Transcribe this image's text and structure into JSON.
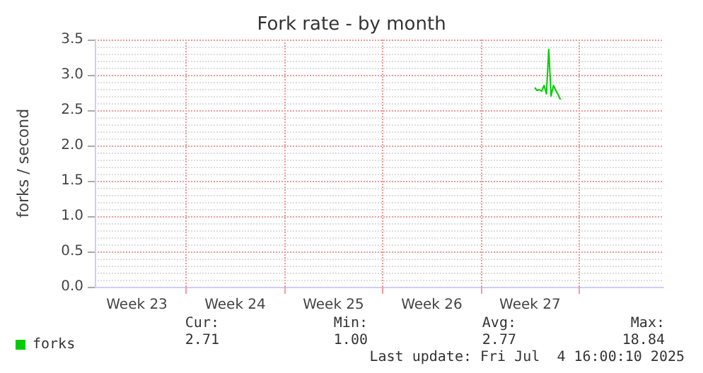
{
  "chart_data": {
    "type": "line",
    "title": "Fork rate - by month",
    "ylabel": "forks / second",
    "categories": [
      null,
      null,
      null,
      null,
      null,
      null,
      null,
      null,
      null,
      null,
      null,
      null,
      null,
      null,
      null,
      null,
      null,
      null,
      "Week 23",
      null,
      null,
      null,
      null,
      null,
      null,
      null,
      null,
      null,
      null,
      null,
      null,
      null,
      null,
      null,
      null,
      null,
      null,
      null,
      null,
      null,
      null,
      null,
      null,
      null,
      null,
      null,
      null,
      null,
      null,
      null,
      null,
      null,
      null,
      null,
      null,
      null,
      null,
      null,
      null,
      null,
      "Week 24",
      null,
      null,
      null,
      null,
      null,
      null,
      null,
      null,
      null,
      null,
      null,
      null,
      null,
      null,
      null,
      null,
      null,
      null,
      null,
      null,
      null,
      null,
      null,
      null,
      null,
      null,
      null,
      null,
      null,
      null,
      null,
      null,
      null,
      null,
      null,
      null,
      null,
      null,
      null,
      null,
      null,
      "Week 25",
      null,
      null,
      null,
      null,
      null,
      null,
      null,
      null,
      null,
      null,
      null,
      null,
      null,
      null,
      null,
      null,
      null,
      null,
      null,
      null,
      null,
      null,
      null,
      null,
      null,
      null,
      null,
      null,
      null,
      null,
      null,
      null,
      null,
      null,
      null,
      null,
      null,
      null,
      null,
      null,
      null,
      "Week 26",
      null,
      null,
      null,
      null,
      null,
      null,
      null,
      null,
      null,
      null,
      null,
      null,
      null,
      null,
      null,
      null,
      null,
      null,
      null,
      null,
      null,
      null,
      null,
      null,
      null,
      null,
      null,
      null,
      null,
      null,
      null,
      null,
      null,
      null,
      null,
      null,
      null,
      null,
      null,
      null,
      null,
      "Week 27",
      null,
      null,
      null,
      null,
      null,
      null,
      null,
      null,
      null,
      null,
      null,
      null,
      null,
      null,
      null,
      null,
      null,
      null,
      null,
      null,
      null,
      null,
      null,
      null,
      null,
      null,
      null,
      null,
      null,
      null,
      null,
      null,
      null,
      null,
      null,
      null,
      null,
      null,
      null,
      null,
      null,
      null,
      null,
      null,
      null,
      null,
      null,
      null,
      null,
      null,
      null,
      null,
      null,
      null,
      null,
      null,
      null
    ],
    "ylim": [
      0,
      3.5
    ],
    "yticks": [
      {
        "value": 0,
        "label": "0.0"
      },
      {
        "value": 0.5,
        "label": "0.5"
      },
      {
        "value": 1,
        "label": "1.0"
      },
      {
        "value": 1.5,
        "label": "1.5"
      },
      {
        "value": 2,
        "label": "2.0"
      },
      {
        "value": 2.5,
        "label": "2.5"
      },
      {
        "value": 3,
        "label": "3.0"
      },
      {
        "value": 3.5,
        "label": "3.5"
      }
    ],
    "grid": true,
    "legend": "bottom left",
    "series": [
      {
        "name": "forks",
        "color": "#00cc00",
        "values": [
          null,
          null,
          null,
          null,
          null,
          null,
          null,
          null,
          null,
          null,
          null,
          null,
          null,
          null,
          null,
          null,
          null,
          null,
          null,
          null,
          null,
          null,
          null,
          null,
          null,
          null,
          null,
          null,
          null,
          null,
          null,
          null,
          null,
          null,
          null,
          null,
          null,
          null,
          null,
          null,
          null,
          null,
          null,
          null,
          null,
          null,
          null,
          null,
          null,
          null,
          null,
          null,
          null,
          null,
          null,
          null,
          null,
          null,
          null,
          null,
          null,
          null,
          null,
          null,
          null,
          null,
          null,
          null,
          null,
          null,
          null,
          null,
          null,
          null,
          null,
          null,
          null,
          null,
          null,
          null,
          null,
          null,
          null,
          null,
          null,
          null,
          null,
          null,
          null,
          null,
          null,
          null,
          null,
          null,
          null,
          null,
          null,
          null,
          null,
          null,
          null,
          null,
          null,
          null,
          null,
          null,
          null,
          null,
          null,
          null,
          null,
          null,
          null,
          null,
          null,
          null,
          null,
          null,
          null,
          null,
          null,
          null,
          null,
          null,
          null,
          null,
          null,
          null,
          null,
          null,
          null,
          null,
          null,
          null,
          null,
          null,
          null,
          null,
          null,
          null,
          null,
          null,
          null,
          null,
          null,
          null,
          null,
          null,
          null,
          null,
          null,
          null,
          null,
          null,
          null,
          null,
          null,
          null,
          null,
          null,
          null,
          null,
          null,
          null,
          null,
          null,
          null,
          null,
          null,
          null,
          null,
          null,
          null,
          null,
          null,
          null,
          null,
          null,
          null,
          null,
          null,
          null,
          null,
          null,
          null,
          null,
          null,
          null,
          2.82,
          2.78,
          2.79,
          2.77,
          2.85,
          2.73,
          3.36,
          2.7,
          2.85,
          2.78,
          2.72,
          2.65,
          null,
          null,
          null,
          null,
          null,
          null,
          null,
          null,
          null,
          null,
          null,
          null,
          null,
          null,
          null,
          null,
          null,
          null,
          null,
          null,
          null,
          null,
          null,
          null,
          null,
          null,
          null,
          null,
          null,
          null,
          null,
          null,
          null,
          null,
          null,
          null,
          null,
          null,
          null,
          null,
          null,
          null,
          null,
          null
        ]
      }
    ],
    "annotations": [
      "Cur:",
      "2.71",
      "Min:",
      "1.00",
      "Avg:",
      "2.77",
      "Max:",
      "18.84",
      "Last update: Fri Jul  4 16:00:10 2025"
    ]
  }
}
